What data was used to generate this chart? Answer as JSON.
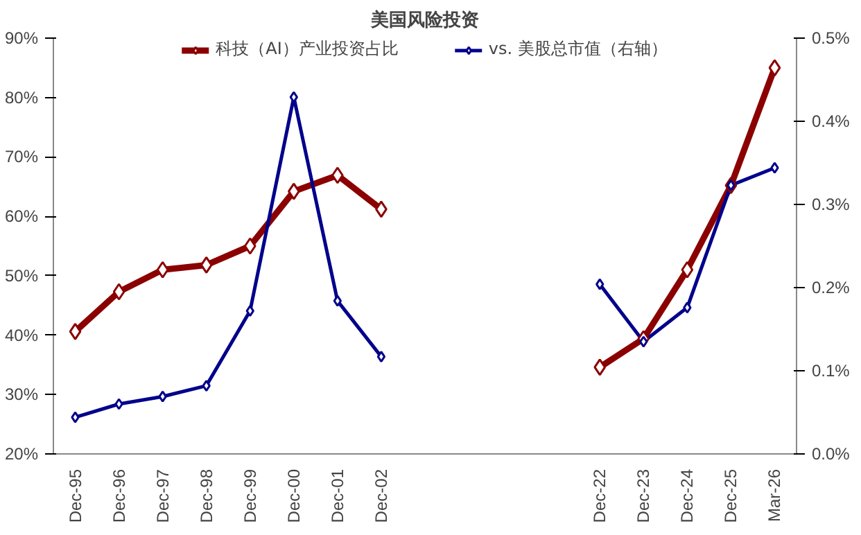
{
  "chart_data": {
    "type": "line",
    "title": "美国风险投资",
    "categories": [
      "Dec-95",
      "Dec-96",
      "Dec-97",
      "Dec-98",
      "Dec-99",
      "Dec-00",
      "Dec-01",
      "Dec-02",
      null,
      null,
      null,
      null,
      "Dec-22",
      "Dec-23",
      "Dec-24",
      "Dec-25",
      "Mar-26"
    ],
    "series": [
      {
        "name": "科技（AI）产业投资占比",
        "color": "#8b0000",
        "values": [
          40.6,
          47.3,
          51,
          51.8,
          55,
          64.2,
          66.9,
          61.2,
          null,
          null,
          null,
          null,
          34.6,
          39.4,
          51,
          65.2,
          85
        ]
      },
      {
        "name": "vs. 美股总市值（右轴）",
        "color": "#00008b",
        "axis": "y2",
        "values": [
          0.044,
          0.06,
          0.069,
          0.082,
          0.172,
          0.429,
          0.184,
          0.117,
          null,
          null,
          null,
          null,
          0.204,
          0.135,
          0.176,
          0.323,
          0.344
        ]
      }
    ],
    "ylim": [
      20,
      90
    ],
    "yticks": [
      {
        "value": 20,
        "label": "20%"
      },
      {
        "value": 30,
        "label": "30%"
      },
      {
        "value": 40,
        "label": "40%"
      },
      {
        "value": 50,
        "label": "50%"
      },
      {
        "value": 60,
        "label": "60%"
      },
      {
        "value": 70,
        "label": "70%"
      },
      {
        "value": 80,
        "label": "80%"
      },
      {
        "value": 90,
        "label": "90%"
      }
    ],
    "y2lim": [
      0,
      0.5
    ],
    "y2ticks": [
      {
        "value": 0,
        "label": "0.0%"
      },
      {
        "value": 0.1,
        "label": "0.1%"
      },
      {
        "value": 0.2,
        "label": "0.2%"
      },
      {
        "value": 0.3,
        "label": "0.3%"
      },
      {
        "value": 0.4,
        "label": "0.4%"
      },
      {
        "value": 0.5,
        "label": "0.5%"
      }
    ],
    "marker": "diamond",
    "legend": "top",
    "grid": false
  }
}
